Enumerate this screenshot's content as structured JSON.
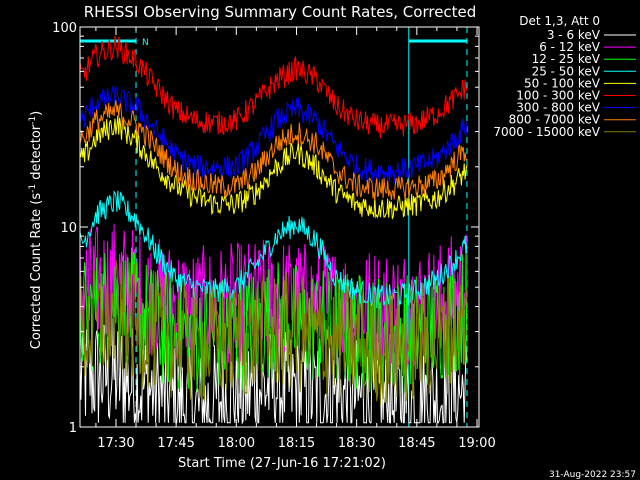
{
  "chart_data": {
    "type": "line",
    "title": "RHESSI Observing Summary Count Rates, Corrected",
    "xlabel": "Start Time (27-Jun-16 17:21:02)",
    "ylabel_prefix": "Corrected Count Rate (s",
    "ylabel_exp1": "-1",
    "ylabel_mid": " detector",
    "ylabel_exp2": "-1",
    "ylabel_suffix": ")",
    "y_scale": "log",
    "ylim": [
      1,
      100
    ],
    "xlim": [
      "17:21:02",
      "19:00:30"
    ],
    "x_ticks": [
      "17:30",
      "17:45",
      "18:00",
      "18:15",
      "18:30",
      "18:45",
      "19:00"
    ],
    "y_ticks": [
      "1",
      "10",
      "100"
    ],
    "legend_title": "Det 1,3, Att 0",
    "legend_position": "top-right",
    "night_periods": [
      {
        "start": "17:21:02",
        "end": "17:35:00",
        "label": "N"
      },
      {
        "start": "18:43:00",
        "end": "18:57:30",
        "label": ""
      }
    ],
    "series": [
      {
        "name": "3 - 6 keV",
        "color": "#ffffff",
        "x": [
          "17:22",
          "17:30",
          "17:40",
          "17:50",
          "18:00",
          "18:10",
          "18:20",
          "18:30",
          "18:40",
          "18:50",
          "18:57"
        ],
        "values": [
          1.8,
          1.8,
          1.5,
          1.2,
          1.5,
          1.6,
          1.5,
          1.4,
          1.3,
          1.4,
          1.5
        ]
      },
      {
        "name": "6 - 12 keV",
        "color": "#ff00ff",
        "x": [
          "17:22",
          "17:30",
          "17:40",
          "17:50",
          "18:00",
          "18:10",
          "18:20",
          "18:30",
          "18:40",
          "18:50",
          "18:57"
        ],
        "values": [
          5.0,
          5.5,
          4.5,
          4.0,
          4.2,
          4.5,
          4.2,
          4.0,
          4.0,
          4.2,
          5.0
        ]
      },
      {
        "name": "12 - 25 keV",
        "color": "#00ff00",
        "x": [
          "17:22",
          "17:30",
          "17:40",
          "17:50",
          "18:00",
          "18:10",
          "18:20",
          "18:30",
          "18:40",
          "18:50",
          "18:57"
        ],
        "values": [
          3.5,
          4.5,
          3.2,
          2.8,
          3.0,
          3.5,
          3.2,
          3.0,
          2.9,
          3.2,
          4.0
        ]
      },
      {
        "name": "25 - 50 keV",
        "color": "#00ffff",
        "x": [
          "17:22",
          "17:25",
          "17:30",
          "17:35",
          "17:40",
          "17:45",
          "17:50",
          "17:55",
          "18:00",
          "18:05",
          "18:10",
          "18:15",
          "18:20",
          "18:25",
          "18:30",
          "18:35",
          "18:40",
          "18:45",
          "18:50",
          "18:55",
          "18:57"
        ],
        "values": [
          8.5,
          11.5,
          13.5,
          11.0,
          7.5,
          5.5,
          5.0,
          4.8,
          5.0,
          6.5,
          9.0,
          10.5,
          8.5,
          5.5,
          4.8,
          4.5,
          4.5,
          4.8,
          5.5,
          7.0,
          8.0
        ]
      },
      {
        "name": "50 - 100 keV",
        "color": "#ffff00",
        "x": [
          "17:22",
          "17:25",
          "17:30",
          "17:35",
          "17:40",
          "17:45",
          "17:50",
          "17:55",
          "18:00",
          "18:05",
          "18:10",
          "18:15",
          "18:20",
          "18:25",
          "18:30",
          "18:35",
          "18:40",
          "18:45",
          "18:50",
          "18:55",
          "18:57"
        ],
        "values": [
          22,
          28,
          33,
          27,
          20,
          16,
          14,
          13,
          13,
          15,
          20,
          24,
          20,
          15,
          13,
          12.5,
          12.5,
          13,
          14,
          17,
          19
        ]
      },
      {
        "name": "100 - 300 keV",
        "color": "#ff0000",
        "x": [
          "17:22",
          "17:25",
          "17:30",
          "17:35",
          "17:40",
          "17:45",
          "17:50",
          "17:55",
          "18:00",
          "18:05",
          "18:10",
          "18:15",
          "18:20",
          "18:25",
          "18:30",
          "18:35",
          "18:40",
          "18:45",
          "18:50",
          "18:55",
          "18:57"
        ],
        "values": [
          58,
          72,
          80,
          68,
          50,
          38,
          34,
          33,
          34,
          42,
          54,
          62,
          55,
          40,
          34,
          32,
          32,
          33,
          37,
          45,
          50
        ]
      },
      {
        "name": "300 - 800 keV",
        "color": "#0000ff",
        "x": [
          "17:22",
          "17:25",
          "17:30",
          "17:35",
          "17:40",
          "17:45",
          "17:50",
          "17:55",
          "18:00",
          "18:05",
          "18:10",
          "18:15",
          "18:20",
          "18:25",
          "18:30",
          "18:35",
          "18:40",
          "18:45",
          "18:50",
          "18:55",
          "18:57"
        ],
        "values": [
          35,
          42,
          45,
          40,
          30,
          23,
          20,
          20,
          20,
          25,
          34,
          39,
          34,
          25,
          20,
          19,
          19,
          20,
          22,
          28,
          32
        ]
      },
      {
        "name": "800 - 7000 keV",
        "color": "#ff8000",
        "x": [
          "17:22",
          "17:25",
          "17:30",
          "17:35",
          "17:40",
          "17:45",
          "17:50",
          "17:55",
          "18:00",
          "18:05",
          "18:10",
          "18:15",
          "18:20",
          "18:25",
          "18:30",
          "18:35",
          "18:40",
          "18:45",
          "18:50",
          "18:55",
          "18:57"
        ],
        "values": [
          28,
          34,
          38,
          33,
          25,
          19,
          17,
          16,
          16,
          19,
          26,
          30,
          26,
          19,
          16,
          15.5,
          15.5,
          16,
          17,
          22,
          24
        ]
      },
      {
        "name": "7000 - 15000 keV",
        "color": "#808000",
        "x": [
          "17:22",
          "17:30",
          "17:40",
          "17:50",
          "18:00",
          "18:10",
          "18:20",
          "18:30",
          "18:40",
          "18:50",
          "18:57"
        ],
        "values": [
          3.0,
          3.5,
          3.0,
          2.5,
          2.7,
          3.0,
          2.8,
          2.6,
          2.5,
          2.8,
          3.2
        ]
      }
    ]
  },
  "footer_timestamp": "31-Aug-2022 23:57"
}
